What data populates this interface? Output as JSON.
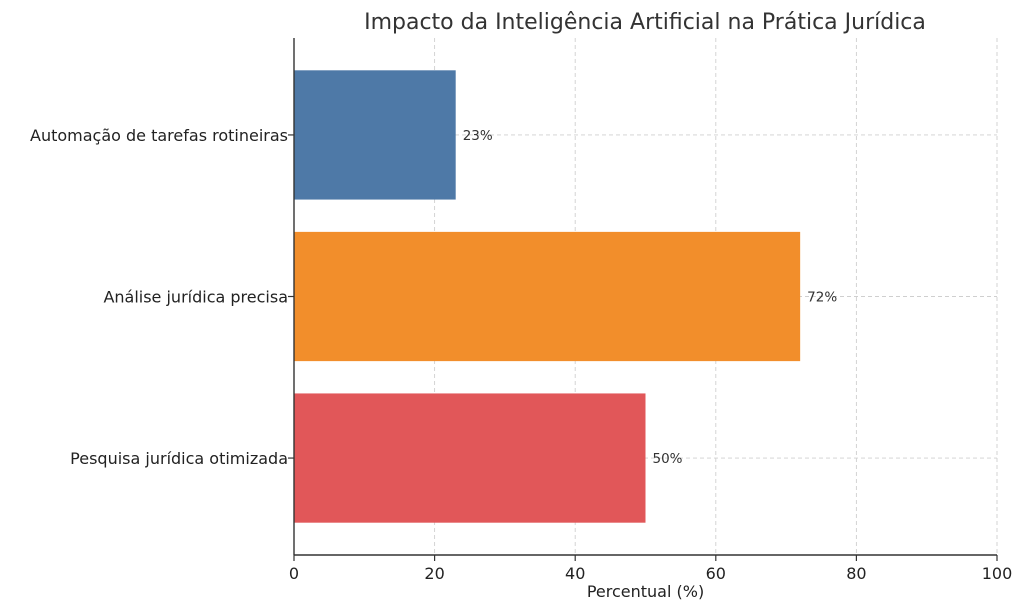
{
  "chart_data": {
    "type": "bar",
    "orientation": "horizontal",
    "title": "Impacto da Inteligência Artificial na Prática Jurídica",
    "xlabel": "Percentual (%)",
    "ylabel": "",
    "categories": [
      "Automação de tarefas rotineiras",
      "Análise jurídica precisa",
      "Pesquisa jurídica otimizada"
    ],
    "values": [
      23,
      72,
      50
    ],
    "value_labels": [
      "23%",
      "72%",
      "50%"
    ],
    "colors": [
      "#4e79a7",
      "#f28e2b",
      "#e15759"
    ],
    "xlim": [
      0,
      100
    ],
    "xticks": [
      0,
      20,
      40,
      60,
      80,
      100
    ],
    "xtick_labels": [
      "0",
      "20",
      "40",
      "60",
      "80",
      "100"
    ],
    "grid": true
  }
}
